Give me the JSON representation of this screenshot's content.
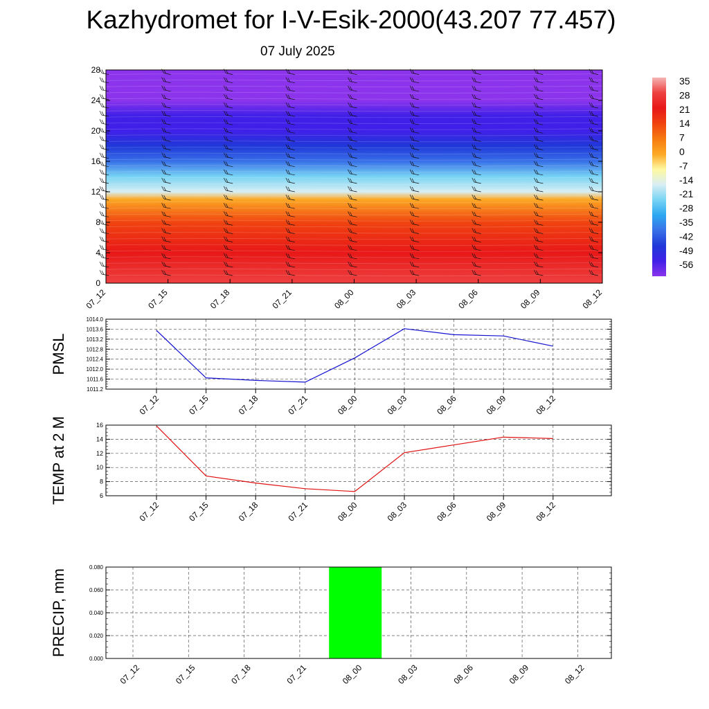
{
  "title": "Kazhydromet for I-V-Esik-2000(43.207 77.457)",
  "subtitle": "07 July 2025",
  "colors": {
    "pmsl_line": "#1010d0",
    "temp_line": "#e01010",
    "precip_bar": "#00ff00",
    "grid": "#555555"
  },
  "chart_data": [
    {
      "type": "heatmap",
      "title": "",
      "ylabel": "",
      "ylim": [
        0,
        28
      ],
      "y_ticks": [
        "0",
        "4",
        "8",
        "12",
        "16",
        "20",
        "24",
        "28"
      ],
      "x_ticks": [
        "07_12",
        "07_15",
        "07_18",
        "07_21",
        "08_00",
        "08_03",
        "08_06",
        "08_09",
        "08_12"
      ],
      "colorbar": {
        "labels": [
          "35",
          "28",
          "21",
          "14",
          "7",
          "0",
          "-7",
          "-14",
          "-21",
          "-28",
          "-35",
          "-42",
          "-49",
          "-56"
        ],
        "colors": [
          "#f4b4b4",
          "#ee4040",
          "#e81818",
          "#f04410",
          "#f67a10",
          "#fca824",
          "#fff8a0",
          "#d8eef4",
          "#78d4f4",
          "#2ca8f0",
          "#3870e8",
          "#2038d8",
          "#4020e8",
          "#8c34ec"
        ]
      },
      "temperature_profile": [
        {
          "level": 0,
          "value": 23
        },
        {
          "level": 4,
          "value": 16
        },
        {
          "level": 8,
          "value": 7
        },
        {
          "level": 11,
          "value": -6
        },
        {
          "level": 12,
          "value": -17
        },
        {
          "level": 14,
          "value": -28
        },
        {
          "level": 16,
          "value": -38
        },
        {
          "level": 18,
          "value": -48
        },
        {
          "level": 20,
          "value": -56
        },
        {
          "level": 22,
          "value": -52
        },
        {
          "level": 24,
          "value": -60
        },
        {
          "level": 28,
          "value": -62
        }
      ],
      "wind_barbs": "present at every time step"
    },
    {
      "type": "line",
      "title": "",
      "ylabel": "PMSL",
      "ylim": [
        1011.2,
        1014.0
      ],
      "y_ticks": [
        "1011.2",
        "1011.6",
        "1012.0",
        "1012.4",
        "1012.8",
        "1013.2",
        "1013.6",
        "1014.0"
      ],
      "x": [
        "07_12",
        "07_15",
        "07_18",
        "07_21",
        "08_00",
        "08_03",
        "08_06",
        "08_09",
        "08_12"
      ],
      "series": [
        {
          "values": [
            1013.55,
            1011.65,
            1011.55,
            1011.48,
            1012.45,
            1013.62,
            1013.38,
            1013.33,
            1012.92
          ]
        }
      ]
    },
    {
      "type": "line",
      "title": "",
      "ylabel": "TEMP at 2 M",
      "ylim": [
        6,
        16
      ],
      "y_ticks": [
        "6",
        "8",
        "10",
        "12",
        "14",
        "16"
      ],
      "x": [
        "07_12",
        "07_15",
        "07_18",
        "07_21",
        "08_00",
        "08_03",
        "08_06",
        "08_09",
        "08_12"
      ],
      "series": [
        {
          "values": [
            15.9,
            8.8,
            7.8,
            7.0,
            6.6,
            12.1,
            13.2,
            14.3,
            14.1
          ]
        }
      ]
    },
    {
      "type": "bar",
      "title": "",
      "ylabel": "PRECIP, mm",
      "ylim": [
        0.0,
        0.08
      ],
      "y_ticks": [
        "0.000",
        "0.020",
        "0.040",
        "0.060",
        "0.080"
      ],
      "categories": [
        "07_12",
        "07_15",
        "07_18",
        "07_21",
        "08_00",
        "08_03",
        "08_06",
        "08_09",
        "08_12"
      ],
      "values": [
        0,
        0,
        0,
        0,
        0.08,
        0,
        0,
        0,
        0
      ]
    }
  ]
}
